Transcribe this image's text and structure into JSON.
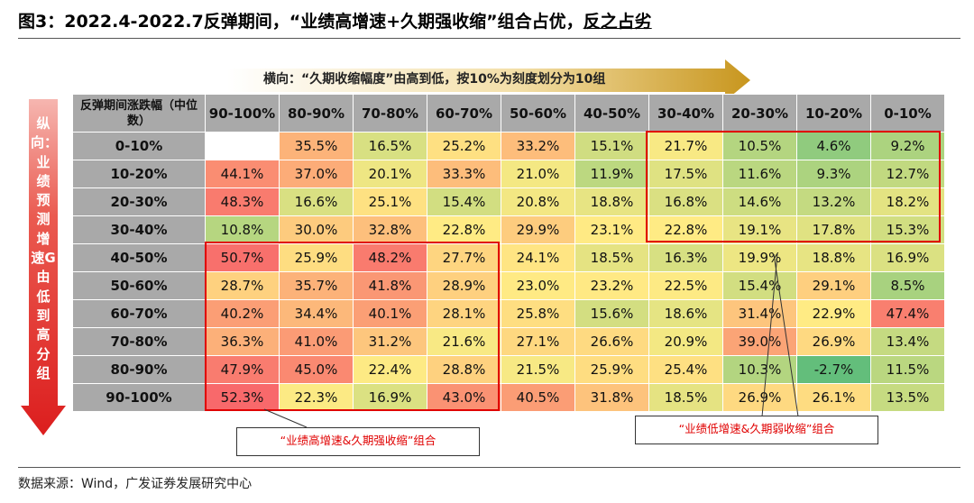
{
  "title": {
    "prefix": "图3：",
    "main": "2022.4-2022.7反弹期间，“业绩高增速+久期强收缩”组合占优，",
    "tail": "反之占劣"
  },
  "horizontal_arrow_label": "横向：“久期收缩幅度”由高到低，按10%为刻度划分为10组",
  "vertical_arrow_label": "纵向：业绩预测增速G由低到高分组",
  "callouts": {
    "low_growth": "“业绩低增速&久期弱收缩”组合",
    "high_growth": "“业绩高增速&久期强收缩”组合"
  },
  "source": "数据来源：Wind，广发证券发展研究中心",
  "colors": {
    "header_bg": "#a9a9a9",
    "highlight_border": "#e00000",
    "arrow_gold": "#c8961e",
    "arrow_red": "#e02020",
    "scale_low": "#63be7b",
    "scale_mid": "#ffeb84",
    "scale_high": "#f8696b"
  },
  "chart_data": {
    "type": "heatmap",
    "corner_label": "反弹期间涨跌幅（中位数）",
    "x_categories": [
      "90-100%",
      "80-90%",
      "70-80%",
      "60-70%",
      "50-60%",
      "40-50%",
      "30-40%",
      "20-30%",
      "10-20%",
      "0-10%"
    ],
    "y_categories": [
      "0-10%",
      "10-20%",
      "20-30%",
      "30-40%",
      "40-50%",
      "50-60%",
      "60-70%",
      "70-80%",
      "80-90%",
      "90-100%"
    ],
    "values": [
      [
        null,
        35.5,
        16.5,
        25.2,
        33.2,
        15.1,
        21.7,
        10.5,
        4.6,
        9.2
      ],
      [
        44.1,
        37.0,
        20.1,
        33.3,
        21.0,
        11.9,
        17.5,
        11.6,
        9.3,
        12.7
      ],
      [
        48.3,
        16.6,
        25.1,
        15.4,
        20.8,
        18.8,
        16.8,
        14.6,
        13.2,
        18.2
      ],
      [
        10.8,
        30.0,
        32.8,
        22.8,
        29.9,
        23.1,
        22.8,
        19.1,
        17.8,
        15.3
      ],
      [
        50.7,
        25.9,
        48.2,
        27.7,
        24.1,
        18.5,
        16.3,
        19.9,
        18.8,
        16.9
      ],
      [
        28.7,
        35.7,
        41.8,
        28.9,
        23.0,
        23.2,
        22.5,
        15.4,
        29.1,
        8.5
      ],
      [
        40.2,
        34.4,
        40.1,
        28.1,
        25.8,
        15.6,
        18.6,
        31.4,
        22.9,
        47.4
      ],
      [
        36.3,
        41.0,
        31.2,
        21.6,
        27.1,
        26.6,
        20.9,
        39.0,
        26.9,
        13.4
      ],
      [
        47.9,
        45.0,
        22.4,
        28.8,
        21.5,
        25.9,
        25.4,
        10.3,
        -2.7,
        11.5
      ],
      [
        52.3,
        22.3,
        16.9,
        43.0,
        40.5,
        31.8,
        18.5,
        26.9,
        26.1,
        13.5
      ]
    ],
    "value_unit": "%",
    "highlight_regions": [
      {
        "label": "“业绩低增速&久期弱收缩”组合",
        "rows": [
          "0-10%",
          "30-40%"
        ],
        "cols": [
          "30-40%",
          "0-10%"
        ]
      },
      {
        "label": "“业绩高增速&久期强收缩”组合",
        "rows": [
          "40-50%",
          "90-100%"
        ],
        "cols": [
          "90-100%",
          "60-70%"
        ]
      }
    ]
  }
}
